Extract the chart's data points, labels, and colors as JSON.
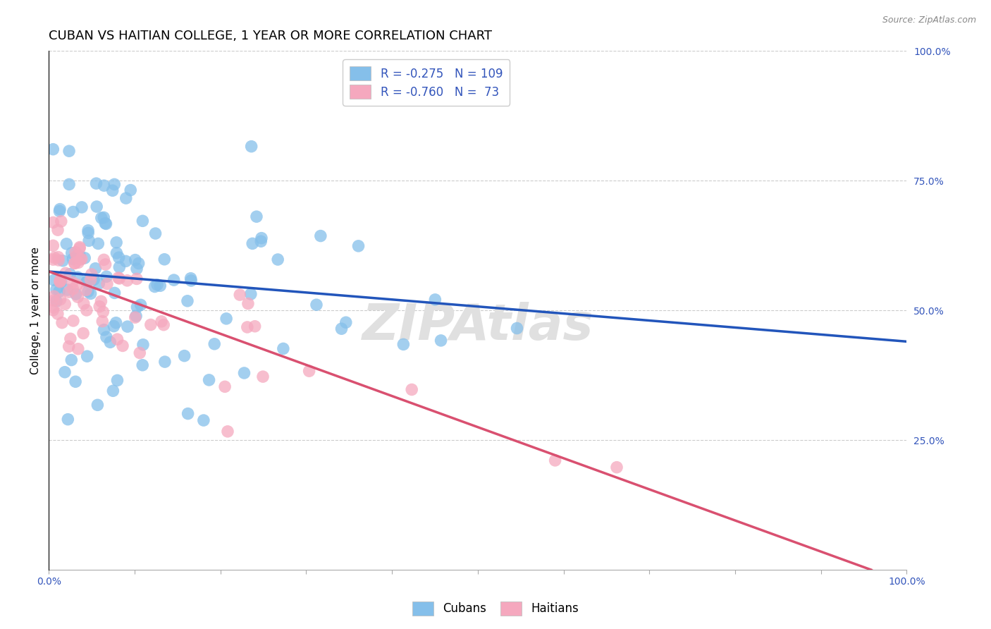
{
  "title": "CUBAN VS HAITIAN COLLEGE, 1 YEAR OR MORE CORRELATION CHART",
  "source_text": "Source: ZipAtlas.com",
  "ylabel": "College, 1 year or more",
  "xlim": [
    0,
    1.0
  ],
  "ylim": [
    0,
    1.0
  ],
  "xtick_positions": [
    0.0,
    0.1,
    0.2,
    0.3,
    0.4,
    0.5,
    0.6,
    0.7,
    0.8,
    0.9,
    1.0
  ],
  "xticklabels": [
    "0.0%",
    "",
    "",
    "",
    "",
    "",
    "",
    "",
    "",
    "",
    "100.0%"
  ],
  "ytick_right_labels": [
    "100.0%",
    "75.0%",
    "50.0%",
    "25.0%"
  ],
  "ytick_right_values": [
    1.0,
    0.75,
    0.5,
    0.25
  ],
  "cuban_color": "#85BFEA",
  "haitian_color": "#F5A8BE",
  "cuban_line_color": "#2255BB",
  "haitian_line_color": "#D95070",
  "cuban_R": -0.275,
  "cuban_N": 109,
  "haitian_R": -0.76,
  "haitian_N": 73,
  "cuban_intercept": 0.575,
  "cuban_slope": -0.135,
  "haitian_intercept": 0.575,
  "haitian_slope": -0.6,
  "background_color": "#FFFFFF",
  "grid_color": "#CCCCCC",
  "title_fontsize": 13,
  "axis_label_fontsize": 11,
  "tick_fontsize": 10,
  "legend_fontsize": 12,
  "watermark_text": "ZIPAtlas",
  "watermark_color": "#E0E0E0",
  "watermark_fontsize": 52,
  "legend_text_color": "#3355BB",
  "tick_label_color": "#3355BB"
}
